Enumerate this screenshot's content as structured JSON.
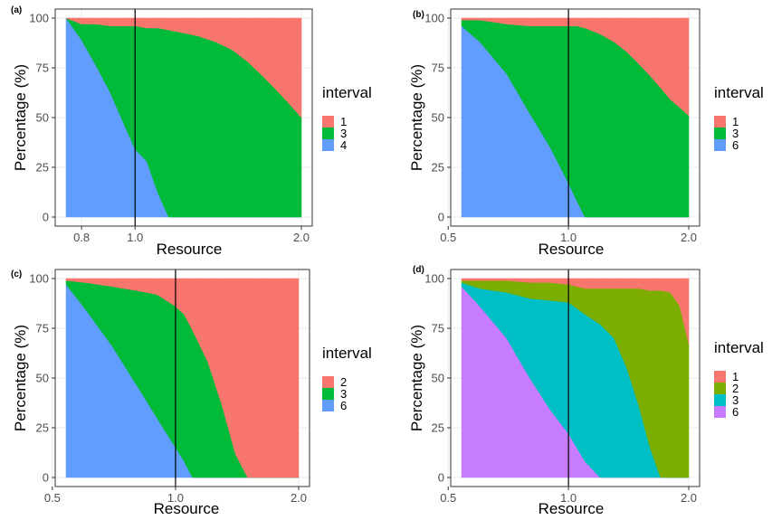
{
  "colors": {
    "1": "#F8766D",
    "2": "#7CAE00",
    "3": "#00BA38",
    "3_teal": "#00BFC4",
    "4": "#619CFF",
    "6": "#619CFF",
    "6_purple": "#C77CFF",
    "panel_border": "#333333",
    "grid": "#ebebeb",
    "vline": "#000000"
  },
  "chart_data": [
    {
      "type": "area",
      "panel": "(a)",
      "xlabel": "Resource",
      "ylabel": "Percentage (%)",
      "x_scale": "log",
      "xlim": [
        0.75,
        2.0
      ],
      "ylim": [
        0,
        100
      ],
      "x_ticks": [
        0.8,
        1.0,
        2.0
      ],
      "x_tick_labels": [
        "0.8",
        "1.0",
        "2.0"
      ],
      "y_ticks": [
        0,
        25,
        50,
        75,
        100
      ],
      "y_tick_labels": [
        "0",
        "25",
        "50",
        "75",
        "100"
      ],
      "vline_x": 1.0,
      "grid": true,
      "legend": {
        "title": "interval",
        "position": "right",
        "entries": [
          "1",
          "3",
          "4"
        ],
        "colors": [
          "#F8766D",
          "#00BA38",
          "#619CFF"
        ]
      },
      "x": [
        0.75,
        0.8,
        0.85,
        0.9,
        0.95,
        1.0,
        1.05,
        1.1,
        1.15,
        1.2,
        1.3,
        1.4,
        1.5,
        1.6,
        1.7,
        1.8,
        1.9,
        2.0
      ],
      "series": [
        {
          "name": "4",
          "values": [
            100,
            89,
            76,
            63,
            48,
            34,
            28,
            12,
            0,
            0,
            0,
            0,
            0,
            0,
            0,
            0,
            0,
            0
          ]
        },
        {
          "name": "3",
          "values": [
            0,
            8,
            21,
            33,
            48,
            62,
            67,
            83,
            94,
            93,
            91,
            88,
            84,
            78,
            71,
            64,
            57,
            50
          ]
        },
        {
          "name": "1",
          "values": [
            0,
            3,
            3,
            4,
            4,
            4,
            5,
            5,
            6,
            7,
            9,
            12,
            16,
            22,
            29,
            36,
            43,
            50
          ]
        }
      ]
    },
    {
      "type": "area",
      "panel": "(b)",
      "xlabel": "Resource",
      "ylabel": "Percentage (%)",
      "x_scale": "log",
      "xlim": [
        0.54,
        2.0
      ],
      "ylim": [
        0,
        100
      ],
      "x_ticks": [
        0.5,
        1.0,
        2.0
      ],
      "x_tick_labels": [
        "0.5",
        "1.0",
        "2.0"
      ],
      "y_ticks": [
        0,
        25,
        50,
        75,
        100
      ],
      "y_tick_labels": [
        "0",
        "25",
        "50",
        "75",
        "100"
      ],
      "vline_x": 1.0,
      "grid": true,
      "legend": {
        "title": "interval",
        "position": "right",
        "entries": [
          "1",
          "3",
          "6"
        ],
        "colors": [
          "#F8766D",
          "#00BA38",
          "#619CFF"
        ]
      },
      "x": [
        0.54,
        0.6,
        0.7,
        0.8,
        0.9,
        1.0,
        1.05,
        1.1,
        1.2,
        1.3,
        1.4,
        1.5,
        1.6,
        1.7,
        1.8,
        1.9,
        2.0
      ],
      "series": [
        {
          "name": "6",
          "values": [
            96,
            88,
            72,
            52,
            35,
            17,
            8,
            0,
            0,
            0,
            0,
            0,
            0,
            0,
            0,
            0,
            0
          ]
        },
        {
          "name": "3",
          "values": [
            3,
            11,
            25,
            44,
            61,
            79,
            88,
            95,
            92,
            88,
            83,
            77,
            71,
            65,
            59,
            55,
            51
          ]
        },
        {
          "name": "1",
          "values": [
            1,
            1,
            3,
            4,
            4,
            4,
            4,
            5,
            8,
            12,
            17,
            23,
            29,
            35,
            41,
            45,
            49
          ]
        }
      ]
    },
    {
      "type": "area",
      "panel": "(c)",
      "xlabel": "Resource",
      "ylabel": "Percentage (%)",
      "x_scale": "log",
      "xlim": [
        0.54,
        2.0
      ],
      "ylim": [
        0,
        100
      ],
      "x_ticks": [
        0.5,
        1.0,
        2.0
      ],
      "x_tick_labels": [
        "0.5",
        "1.0",
        "2.0"
      ],
      "y_ticks": [
        0,
        25,
        50,
        75,
        100
      ],
      "y_tick_labels": [
        "0",
        "25",
        "50",
        "75",
        "100"
      ],
      "vline_x": 1.0,
      "grid": true,
      "legend": {
        "title": "interval",
        "position": "right",
        "entries": [
          "2",
          "3",
          "6"
        ],
        "colors": [
          "#F8766D",
          "#00BA38",
          "#619CFF"
        ]
      },
      "x": [
        0.54,
        0.6,
        0.7,
        0.8,
        0.9,
        1.0,
        1.05,
        1.1,
        1.2,
        1.3,
        1.4,
        1.5,
        1.6,
        1.7,
        1.8,
        1.9,
        2.0
      ],
      "series": [
        {
          "name": "6",
          "values": [
            97,
            85,
            66,
            47,
            30,
            15,
            8,
            0,
            0,
            0,
            0,
            0,
            0,
            0,
            0,
            0,
            0
          ]
        },
        {
          "name": "3",
          "values": [
            2,
            13,
            30,
            47,
            62,
            71,
            74,
            74,
            58,
            36,
            12,
            0,
            0,
            0,
            0,
            0,
            0
          ]
        },
        {
          "name": "2",
          "values": [
            1,
            2,
            4,
            6,
            8,
            14,
            18,
            26,
            42,
            64,
            88,
            100,
            100,
            100,
            100,
            100,
            100
          ]
        }
      ]
    },
    {
      "type": "area",
      "panel": "(d)",
      "xlabel": "Resource",
      "ylabel": "Percentage (%)",
      "x_scale": "log",
      "xlim": [
        0.54,
        2.0
      ],
      "ylim": [
        0,
        100
      ],
      "x_ticks": [
        0.5,
        1.0,
        2.0
      ],
      "x_tick_labels": [
        "0.5",
        "1.0",
        "2.0"
      ],
      "y_ticks": [
        0,
        25,
        50,
        75,
        100
      ],
      "y_tick_labels": [
        "0",
        "25",
        "50",
        "75",
        "100"
      ],
      "vline_x": 1.0,
      "grid": true,
      "legend": {
        "title": "interval",
        "position": "right",
        "entries": [
          "1",
          "2",
          "3",
          "6"
        ],
        "colors": [
          "#F8766D",
          "#7CAE00",
          "#00BFC4",
          "#C77CFF"
        ]
      },
      "x": [
        0.54,
        0.6,
        0.7,
        0.8,
        0.9,
        1.0,
        1.1,
        1.2,
        1.3,
        1.4,
        1.5,
        1.6,
        1.7,
        1.8,
        1.9,
        2.0
      ],
      "series": [
        {
          "name": "6",
          "values": [
            96,
            86,
            70,
            50,
            34,
            22,
            8,
            0,
            0,
            0,
            0,
            0,
            0,
            0,
            0,
            0
          ]
        },
        {
          "name": "3",
          "values": [
            2,
            9,
            23,
            40,
            55,
            66,
            74,
            77,
            70,
            55,
            36,
            15,
            0,
            0,
            0,
            0
          ]
        },
        {
          "name": "2",
          "values": [
            1,
            4,
            6,
            8,
            9,
            9,
            13,
            18,
            25,
            40,
            59,
            79,
            94,
            93,
            86,
            67
          ]
        },
        {
          "name": "1",
          "values": [
            1,
            1,
            1,
            2,
            2,
            3,
            5,
            5,
            5,
            5,
            5,
            6,
            6,
            7,
            14,
            33
          ]
        }
      ]
    }
  ]
}
